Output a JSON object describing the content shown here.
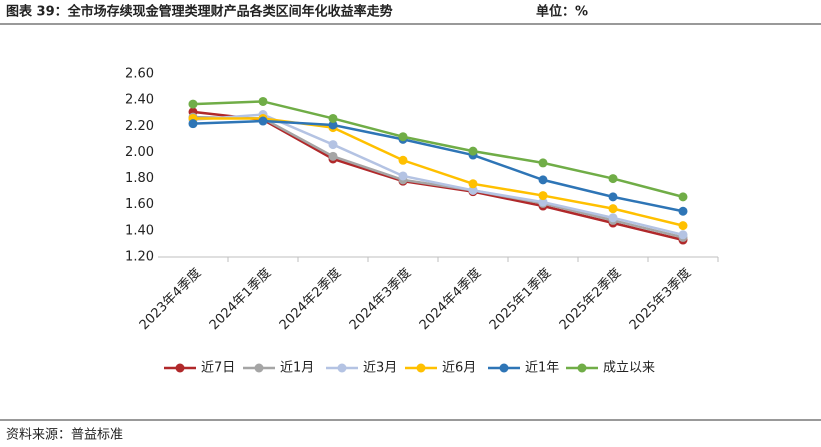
{
  "chart_data": {
    "type": "line",
    "title": "图表 39：全市场存续现金管理类理财产品各类区间年化收益率走势",
    "unit": "单位：%",
    "source": "资料来源：普益标准",
    "categories": [
      "2023年4季度",
      "2024年1季度",
      "2024年2季度",
      "2024年3季度",
      "2024年4季度",
      "2025年1季度",
      "2025年2季度",
      "2025年3季度"
    ],
    "series": [
      {
        "name": "近7日",
        "color": "#b0282a",
        "values": [
          2.31,
          2.25,
          1.95,
          1.78,
          1.7,
          1.59,
          1.46,
          1.33
        ]
      },
      {
        "name": "近1月",
        "color": "#a5a5a5",
        "values": [
          2.27,
          2.26,
          1.97,
          1.79,
          1.71,
          1.61,
          1.48,
          1.35
        ]
      },
      {
        "name": "近3月",
        "color": "#b4c3e3",
        "values": [
          2.25,
          2.29,
          2.06,
          1.82,
          1.71,
          1.62,
          1.5,
          1.37
        ]
      },
      {
        "name": "近6月",
        "color": "#ffc000",
        "values": [
          2.26,
          2.26,
          2.19,
          1.94,
          1.76,
          1.67,
          1.57,
          1.44
        ]
      },
      {
        "name": "近1年",
        "color": "#2e75b6",
        "values": [
          2.22,
          2.24,
          2.21,
          2.1,
          1.98,
          1.79,
          1.66,
          1.55
        ]
      },
      {
        "name": "成立以来",
        "color": "#70ad47",
        "values": [
          2.37,
          2.39,
          2.26,
          2.12,
          2.01,
          1.92,
          1.8,
          1.66
        ]
      }
    ],
    "ylim": [
      1.2,
      2.6
    ],
    "yticks": [
      {
        "value": 1.2,
        "label": "1.20"
      },
      {
        "value": 1.4,
        "label": "1.40"
      },
      {
        "value": 1.6,
        "label": "1.60"
      },
      {
        "value": 1.8,
        "label": "1.80"
      },
      {
        "value": 2.0,
        "label": "2.00"
      },
      {
        "value": 2.2,
        "label": "2.20"
      },
      {
        "value": 2.4,
        "label": "2.40"
      },
      {
        "value": 2.6,
        "label": "2.60"
      }
    ],
    "grid": false,
    "legend": "bottom"
  }
}
